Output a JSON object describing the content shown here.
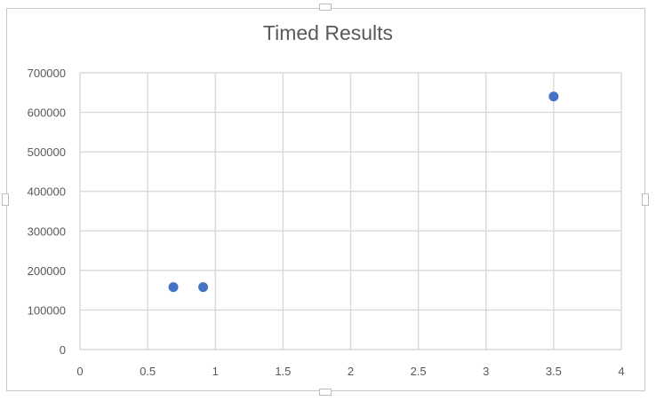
{
  "chart_data": {
    "type": "scatter",
    "title": "Timed Results",
    "xlabel": "",
    "ylabel": "",
    "xlim": [
      0,
      4
    ],
    "ylim": [
      0,
      700000
    ],
    "x_ticks": [
      "0",
      "0.5",
      "1",
      "1.5",
      "2",
      "2.5",
      "3",
      "3.5",
      "4"
    ],
    "y_ticks": [
      "0",
      "100000",
      "200000",
      "300000",
      "400000",
      "500000",
      "600000",
      "700000"
    ],
    "grid": true,
    "legend": "none",
    "marker_color": "#4472C4",
    "gridline_color": "#d9d9d9",
    "series": [
      {
        "x": [
          0.69,
          0.91,
          3.5
        ],
        "y": [
          158000,
          158000,
          640000
        ]
      }
    ]
  }
}
